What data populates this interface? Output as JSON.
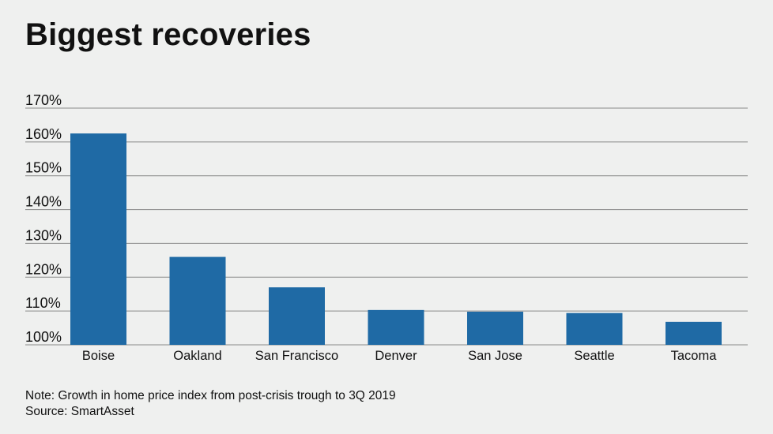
{
  "chart_data": {
    "type": "bar",
    "title": "Biggest recoveries",
    "categories": [
      "Boise",
      "Oakland",
      "San Francisco",
      "Denver",
      "San Jose",
      "Seattle",
      "Tacoma"
    ],
    "values": [
      162.5,
      126,
      117,
      110.3,
      109.8,
      109.4,
      106.8
    ],
    "ylim": [
      100,
      170
    ],
    "yticks": [
      100,
      110,
      120,
      130,
      140,
      150,
      160,
      170
    ],
    "ytick_labels": [
      "100%",
      "110%",
      "120%",
      "130%",
      "140%",
      "150%",
      "160%",
      "170%"
    ],
    "xlabel": "",
    "ylabel": "",
    "grid": true,
    "bar_color": "#1f6aa5"
  },
  "footer": {
    "note": "Note: Growth in home price index from post-crisis trough to 3Q 2019",
    "source": "Source: SmartAsset"
  }
}
